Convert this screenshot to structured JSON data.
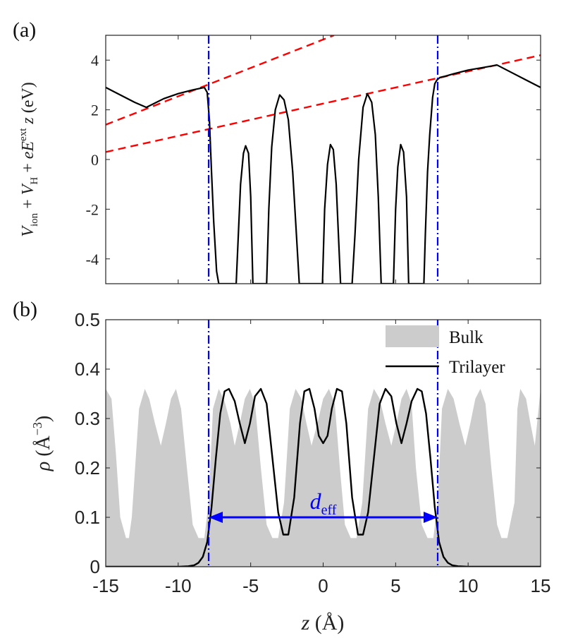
{
  "chart_data": [
    {
      "panel_label": "(a)",
      "type": "line",
      "ylabel": "V_ion + V_H + eE^ext z (eV)",
      "ylabel_parts": {
        "v": "V",
        "ion": "ion",
        "plus1": " + ",
        "v2": "V",
        "h": "H",
        "plus2": " + ",
        "e": "eE",
        "ext": "ext",
        "z": "z",
        "unit": " (eV)"
      },
      "xlim": [
        -15,
        15
      ],
      "ylim": [
        -5,
        5
      ],
      "yticks": [
        "4",
        "2",
        "0",
        "-2",
        "-4"
      ],
      "ytick_values": [
        4,
        2,
        0,
        -2,
        -4
      ],
      "vertical_lines_x": [
        -7.9,
        7.9
      ],
      "series": [
        {
          "name": "potential",
          "color": "#000000",
          "x": [
            -15,
            -14,
            -13,
            -12.2,
            -11,
            -10,
            -9,
            -8.6,
            -8.2,
            -8,
            -7.85,
            -7.7,
            -7.55,
            -7.35,
            -7.2,
            -7.1,
            -6.0,
            -5.85,
            -5.7,
            -5.5,
            -5.35,
            -5.15,
            -5.0,
            -4.85,
            -3.9,
            -3.75,
            -3.55,
            -3.3,
            -3.0,
            -2.7,
            -2.4,
            -2.1,
            -1.85,
            -1.65,
            -1.5,
            -0.05,
            0.1,
            0.3,
            0.5,
            0.7,
            0.9,
            1.05,
            1.2,
            2.0,
            2.2,
            2.45,
            2.75,
            3.05,
            3.35,
            3.6,
            3.8,
            4.0,
            4.85,
            5.0,
            5.15,
            5.35,
            5.55,
            5.75,
            5.9,
            6.95,
            7.05,
            7.2,
            7.35,
            7.55,
            7.7,
            7.85,
            8.05,
            8.4,
            9,
            10,
            11,
            12,
            13,
            14,
            15
          ],
          "y": [
            2.9,
            2.6,
            2.3,
            2.1,
            2.45,
            2.65,
            2.8,
            2.85,
            2.9,
            2.7,
            1.6,
            -0.5,
            -2.5,
            -4.5,
            -5.0,
            -5.0,
            -5.0,
            -3.0,
            -1.0,
            0.25,
            0.55,
            0.25,
            -1.5,
            -5.0,
            -5.0,
            -2.0,
            0.5,
            2.0,
            2.6,
            2.4,
            1.6,
            -0.5,
            -3.0,
            -5.0,
            -5.0,
            -5.0,
            -2.0,
            -0.2,
            0.6,
            0.4,
            -1.0,
            -3.0,
            -5.0,
            -5.0,
            -3.0,
            0.0,
            2.1,
            2.65,
            2.3,
            1.0,
            -1.5,
            -5.0,
            -5.0,
            -2.0,
            -0.3,
            0.6,
            0.3,
            -1.5,
            -5.0,
            -5.0,
            -3.0,
            -0.5,
            1.0,
            2.5,
            3.05,
            3.2,
            3.3,
            3.35,
            3.45,
            3.6,
            3.7,
            3.8,
            3.5,
            3.2,
            2.9
          ]
        },
        {
          "name": "fit-line-lower",
          "color": "#ff0000",
          "style": "dashed",
          "x": [
            -15,
            15
          ],
          "y": [
            0.3,
            4.2
          ]
        },
        {
          "name": "fit-line-upper",
          "color": "#ff0000",
          "style": "dashed",
          "x": [
            -15,
            0.75
          ],
          "y": [
            1.4,
            5.0
          ]
        }
      ]
    },
    {
      "panel_label": "(b)",
      "type": "area",
      "ylabel": "ρ (Å^−3)",
      "ylabel_parts": {
        "rho": "ρ",
        "unit_open": " (Å",
        "exp": "−3",
        "unit_close": ")"
      },
      "xlabel": "z (Å)",
      "xlabel_parts": {
        "z": "z",
        "unit": " (Å)"
      },
      "xlim": [
        -15,
        15
      ],
      "ylim": [
        0,
        0.5
      ],
      "xticks": [
        "-15",
        "-10",
        "-5",
        "0",
        "5",
        "10",
        "15"
      ],
      "xtick_values": [
        -15,
        -10,
        -5,
        0,
        5,
        10,
        15
      ],
      "yticks": [
        "0",
        "0.1",
        "0.2",
        "0.3",
        "0.4",
        "0.5"
      ],
      "ytick_values": [
        0,
        0.1,
        0.2,
        0.3,
        0.4,
        0.5
      ],
      "vertical_lines_x": [
        -7.9,
        7.9
      ],
      "annotation": {
        "text_main": "d",
        "text_sub": "eff",
        "x_from": -7.9,
        "x_to": 7.9,
        "y": 0.1
      },
      "legend": {
        "position": "top-right",
        "entries": [
          "Bulk",
          "Trilayer"
        ]
      },
      "series": [
        {
          "name": "Bulk",
          "color": "#cccccc",
          "x": [
            -15,
            -14.6,
            -14.3,
            -14.0,
            -13.6,
            -13.4,
            -13.2,
            -12.7,
            -12.3,
            -12.0,
            -11.6,
            -11.2,
            -10.85,
            -10.5,
            -10.15,
            -9.8,
            -9.4,
            -9.0,
            -8.6,
            -8.2,
            -7.9,
            -7.6,
            -7.2,
            -6.8,
            -6.4,
            -6.1,
            -5.75,
            -5.4,
            -5.05,
            -4.7,
            -4.3,
            -3.9,
            -3.5,
            -3.1,
            -2.7,
            -2.3,
            -1.9,
            -1.5,
            -1.15,
            -0.8,
            -0.4,
            0,
            0.4,
            0.8,
            1.15,
            1.5,
            1.9,
            2.3,
            2.7,
            3.1,
            3.5,
            3.9,
            4.3,
            4.7,
            5.05,
            5.4,
            5.75,
            6.1,
            6.4,
            6.8,
            7.2,
            7.6,
            7.9,
            8.2,
            8.6,
            9.0,
            9.4,
            9.8,
            10.15,
            10.5,
            10.85,
            11.2,
            11.6,
            12.0,
            12.3,
            12.7,
            13.2,
            13.4,
            13.6,
            14.0,
            14.3,
            14.6,
            15
          ],
          "y": [
            0.36,
            0.34,
            0.23,
            0.1,
            0.058,
            0.058,
            0.1,
            0.32,
            0.36,
            0.34,
            0.29,
            0.245,
            0.29,
            0.34,
            0.36,
            0.32,
            0.2,
            0.085,
            0.058,
            0.058,
            0.13,
            0.32,
            0.36,
            0.335,
            0.29,
            0.245,
            0.29,
            0.34,
            0.36,
            0.33,
            0.2,
            0.085,
            0.058,
            0.058,
            0.13,
            0.32,
            0.36,
            0.34,
            0.29,
            0.245,
            0.29,
            0.34,
            0.36,
            0.33,
            0.2,
            0.085,
            0.058,
            0.058,
            0.13,
            0.32,
            0.36,
            0.34,
            0.29,
            0.245,
            0.29,
            0.34,
            0.36,
            0.33,
            0.2,
            0.085,
            0.058,
            0.058,
            0.13,
            0.32,
            0.36,
            0.34,
            0.29,
            0.245,
            0.29,
            0.34,
            0.36,
            0.33,
            0.2,
            0.085,
            0.058,
            0.058,
            0.13,
            0.32,
            0.36,
            0.34,
            0.29,
            0.245,
            0.36
          ]
        },
        {
          "name": "Trilayer",
          "color": "#000000",
          "x": [
            -15,
            -10,
            -9.3,
            -8.9,
            -8.6,
            -8.3,
            -8.0,
            -7.7,
            -7.4,
            -7.1,
            -6.8,
            -6.5,
            -6.1,
            -5.75,
            -5.4,
            -5.05,
            -4.7,
            -4.3,
            -3.9,
            -3.5,
            -3.1,
            -2.75,
            -2.4,
            -2.0,
            -1.6,
            -1.3,
            -0.95,
            -0.6,
            -0.3,
            0,
            0.3,
            0.6,
            0.95,
            1.3,
            1.6,
            2.0,
            2.4,
            2.75,
            3.1,
            3.5,
            3.9,
            4.3,
            4.7,
            5.05,
            5.4,
            5.75,
            6.1,
            6.5,
            6.8,
            7.1,
            7.4,
            7.7,
            8.0,
            8.3,
            8.6,
            8.9,
            9.3,
            10,
            15
          ],
          "y": [
            0.0,
            0.0,
            0.001,
            0.003,
            0.008,
            0.02,
            0.05,
            0.12,
            0.22,
            0.31,
            0.355,
            0.36,
            0.335,
            0.29,
            0.25,
            0.29,
            0.345,
            0.36,
            0.33,
            0.22,
            0.11,
            0.065,
            0.065,
            0.14,
            0.29,
            0.355,
            0.36,
            0.32,
            0.265,
            0.25,
            0.265,
            0.32,
            0.36,
            0.355,
            0.29,
            0.14,
            0.065,
            0.065,
            0.11,
            0.22,
            0.33,
            0.36,
            0.345,
            0.29,
            0.25,
            0.29,
            0.335,
            0.36,
            0.355,
            0.31,
            0.22,
            0.12,
            0.05,
            0.02,
            0.008,
            0.003,
            0.001,
            0.0,
            0.0
          ]
        }
      ]
    }
  ],
  "colors": {
    "dashdot": "#0000ff",
    "fit": "#ff0000",
    "bulk": "#cccccc",
    "trilayer": "#000000",
    "arrow": "#0000ff"
  }
}
